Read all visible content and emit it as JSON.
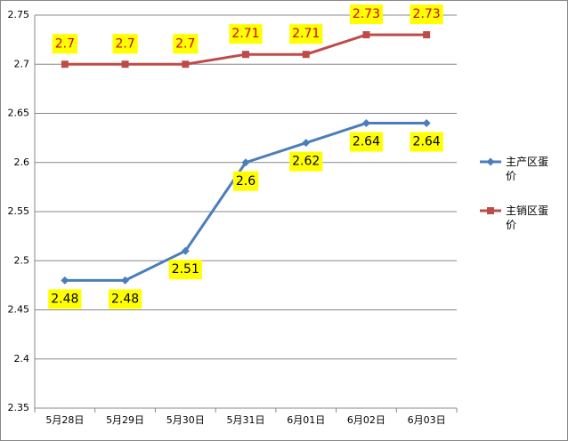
{
  "chart_data": {
    "type": "line",
    "categories": [
      "5月28日",
      "5月29日",
      "5月30日",
      "5月31日",
      "6月01日",
      "6月02日",
      "6月03日"
    ],
    "series": [
      {
        "name": "主产区蛋价",
        "color": "#4a7ebb",
        "marker": "diamond",
        "label_color": "#000000",
        "values": [
          2.48,
          2.48,
          2.51,
          2.6,
          2.62,
          2.64,
          2.64
        ]
      },
      {
        "name": "主销区蛋价",
        "color": "#be4b48",
        "marker": "square",
        "label_color": "#d00000",
        "values": [
          2.7,
          2.7,
          2.7,
          2.71,
          2.71,
          2.73,
          2.73
        ]
      }
    ],
    "ylim": [
      2.35,
      2.75
    ],
    "yticks": [
      2.35,
      2.4,
      2.45,
      2.5,
      2.55,
      2.6,
      2.65,
      2.7,
      2.75
    ],
    "grid": true,
    "legend": "right",
    "data_labels": true
  }
}
